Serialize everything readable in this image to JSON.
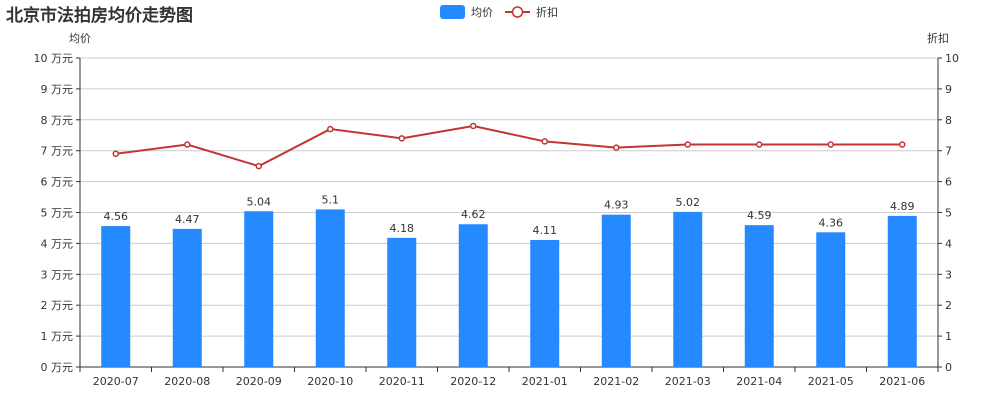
{
  "chart_data": {
    "type": "bar",
    "title": "北京市法拍房均价走势图",
    "categories": [
      "2020-07",
      "2020-08",
      "2020-09",
      "2020-10",
      "2020-11",
      "2020-12",
      "2021-01",
      "2021-02",
      "2021-03",
      "2021-04",
      "2021-05",
      "2021-06"
    ],
    "series": [
      {
        "name": "均价",
        "type": "bar",
        "axis": "left",
        "values": [
          4.56,
          4.47,
          5.04,
          5.1,
          4.18,
          4.62,
          4.11,
          4.93,
          5.02,
          4.59,
          4.36,
          4.89
        ],
        "color": "#2589ff",
        "labels_shown": true
      },
      {
        "name": "折扣",
        "type": "line",
        "axis": "right",
        "values": [
          6.9,
          7.2,
          6.5,
          7.7,
          7.4,
          7.8,
          7.3,
          7.1,
          7.2,
          7.2,
          7.2,
          7.2
        ],
        "color": "#c23531",
        "labels_shown": false
      }
    ],
    "y_left": {
      "name": "均价",
      "ylim": [
        0,
        10
      ],
      "ticks": [
        "0 万元",
        "1 万元",
        "2 万元",
        "3 万元",
        "4 万元",
        "5 万元",
        "6 万元",
        "7 万元",
        "8 万元",
        "9 万元",
        "10 万元"
      ]
    },
    "y_right": {
      "name": "折扣",
      "ylim": [
        0,
        10
      ],
      "ticks": [
        "0",
        "1",
        "2",
        "3",
        "4",
        "5",
        "6",
        "7",
        "8",
        "9",
        "10"
      ]
    },
    "grid": true,
    "legend_position": "top-center",
    "colors": {
      "bar": "#2589ff",
      "line": "#c23531",
      "grid": "#cccccc",
      "axis": "#333333"
    }
  }
}
